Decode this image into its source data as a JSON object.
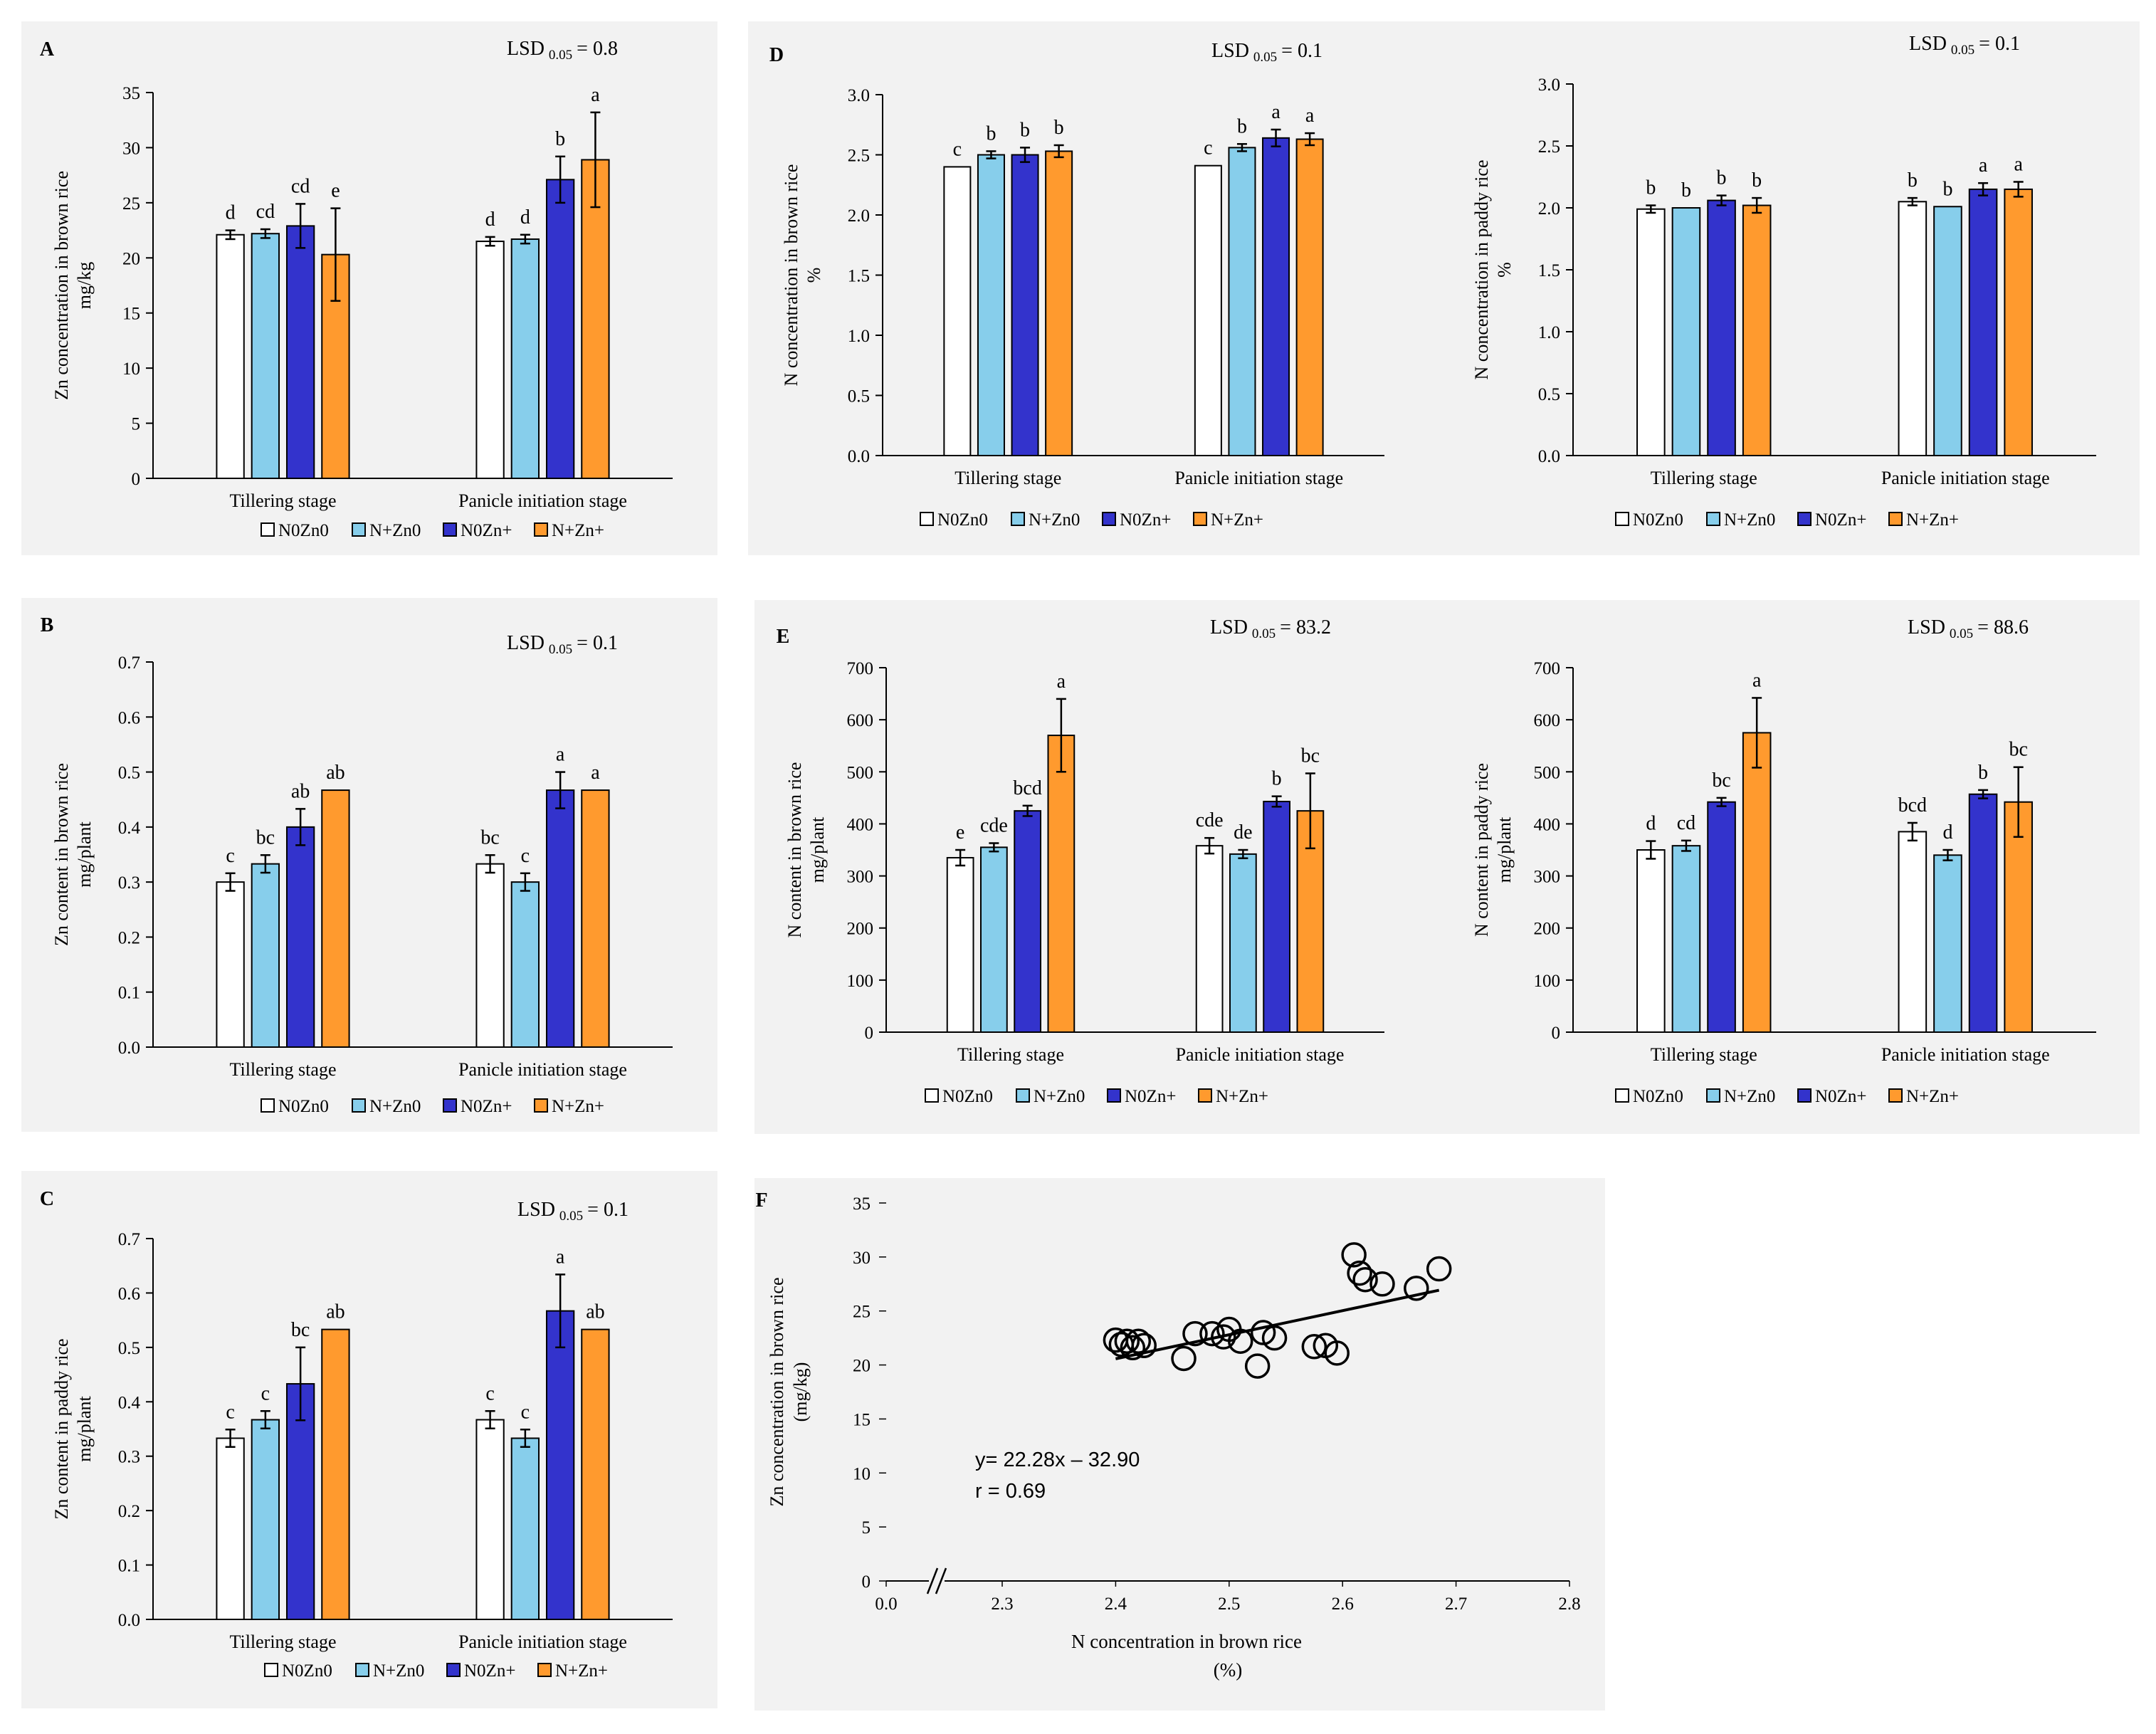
{
  "colors": {
    "N0Zn0": "#ffffff",
    "N+Zn0": "#87ceeb",
    "N0Zn+": "#3333cc",
    "N+Zn+": "#ff9a2e",
    "panel_bg": "#f2f2f2",
    "stroke": "#000000"
  },
  "legend_labels": [
    "N0Zn0",
    "N+Zn0",
    "N0Zn+",
    "N+Zn+"
  ],
  "chart_data": [
    {
      "panel": "A",
      "type": "bar",
      "title": "LSD 0.05 = 0.8",
      "lsd_label": "LSD",
      "lsd_sub": "0.05",
      "lsd_value": "= 0.8",
      "ylabel_line1": "Zn  concentration in brown rice",
      "ylabel_line2": "mg/kg",
      "ylim": [
        0,
        35
      ],
      "yticks": [
        0,
        5,
        10,
        15,
        20,
        25,
        30,
        35
      ],
      "ytick_labels": [
        "0",
        "5",
        "10",
        "15",
        "20",
        "25",
        "30",
        "35"
      ],
      "categories": [
        "Tillering stage",
        "Panicle initiation stage"
      ],
      "series": [
        {
          "name": "N0Zn0",
          "values": [
            22.1,
            21.5
          ],
          "errors": [
            0.4,
            0.4
          ],
          "letters": [
            "d",
            "d"
          ]
        },
        {
          "name": "N+Zn0",
          "values": [
            22.2,
            21.7
          ],
          "errors": [
            0.4,
            0.4
          ],
          "letters": [
            "cd",
            "d"
          ]
        },
        {
          "name": "N0Zn+",
          "values": [
            22.9,
            27.1
          ],
          "errors": [
            2.0,
            2.1
          ],
          "letters": [
            "cd",
            "b"
          ]
        },
        {
          "name": "N+Zn+",
          "values": [
            20.3,
            28.9
          ],
          "errors": [
            4.2,
            4.3
          ],
          "letters": [
            "e",
            "a"
          ]
        }
      ]
    },
    {
      "panel": "B",
      "type": "bar",
      "title": "LSD 0.05 = 0.1",
      "lsd_label": "LSD",
      "lsd_sub": "0.05",
      "lsd_value": "= 0.1",
      "ylabel_line1": "Zn  content in brown rice",
      "ylabel_line2": "mg/plant",
      "ylim": [
        0,
        0.7
      ],
      "yticks": [
        0,
        0.1,
        0.2,
        0.3,
        0.4,
        0.5,
        0.6,
        0.7
      ],
      "ytick_labels": [
        "0.0",
        "0.1",
        "0.2",
        "0.3",
        "0.4",
        "0.5",
        "0.6",
        "0.7"
      ],
      "categories": [
        "Tillering stage",
        "Panicle initiation stage"
      ],
      "series": [
        {
          "name": "N0Zn0",
          "values": [
            0.3,
            0.333
          ],
          "errors": [
            0.016,
            0.016
          ],
          "letters": [
            "c",
            "bc"
          ]
        },
        {
          "name": "N+Zn0",
          "values": [
            0.333,
            0.3
          ],
          "errors": [
            0.016,
            0.016
          ],
          "letters": [
            "bc",
            "c"
          ]
        },
        {
          "name": "N0Zn+",
          "values": [
            0.4,
            0.467
          ],
          "errors": [
            0.033,
            0.033
          ],
          "letters": [
            "ab",
            "a"
          ]
        },
        {
          "name": "N+Zn+",
          "values": [
            0.467,
            0.467
          ],
          "errors": [
            0,
            0
          ],
          "letters": [
            "ab",
            "a"
          ]
        }
      ]
    },
    {
      "panel": "C",
      "type": "bar",
      "title": "LSD 0.05 = 0.1",
      "lsd_label": "LSD",
      "lsd_sub": "0.05",
      "lsd_value": "= 0.1",
      "ylabel_line1": "Zn  content in paddy rice",
      "ylabel_line2": "mg/plant",
      "ylim": [
        0,
        0.7
      ],
      "yticks": [
        0,
        0.1,
        0.2,
        0.3,
        0.4,
        0.5,
        0.6,
        0.7
      ],
      "ytick_labels": [
        "0.0",
        "0.1",
        "0.2",
        "0.3",
        "0.4",
        "0.5",
        "0.6",
        "0.7"
      ],
      "categories": [
        "Tillering stage",
        "Panicle initiation stage"
      ],
      "series": [
        {
          "name": "N0Zn0",
          "values": [
            0.333,
            0.367
          ],
          "errors": [
            0.016,
            0.016
          ],
          "letters": [
            "c",
            "c"
          ]
        },
        {
          "name": "N+Zn0",
          "values": [
            0.367,
            0.333
          ],
          "errors": [
            0.016,
            0.016
          ],
          "letters": [
            "c",
            "c"
          ]
        },
        {
          "name": "N0Zn+",
          "values": [
            0.433,
            0.567
          ],
          "errors": [
            0.067,
            0.067
          ],
          "letters": [
            "bc",
            "a"
          ]
        },
        {
          "name": "N+Zn+",
          "values": [
            0.533,
            0.533
          ],
          "errors": [
            0,
            0
          ],
          "letters": [
            "ab",
            "ab"
          ]
        }
      ]
    },
    {
      "panel": "D",
      "type": "bar",
      "title": "LSD 0.05 = 0.1",
      "lsd_label": "LSD",
      "lsd_sub": "0.05",
      "lsd_value": "= 0.1",
      "ylabel_line1": "N  concentration in brown rice",
      "ylabel_line2": "%",
      "ylim": [
        0,
        3.0
      ],
      "yticks": [
        0,
        0.5,
        1.0,
        1.5,
        2.0,
        2.5,
        3.0
      ],
      "ytick_labels": [
        "0.0",
        "0.5",
        "1.0",
        "1.5",
        "2.0",
        "2.5",
        "3.0"
      ],
      "categories": [
        "Tillering stage",
        "Panicle initiation stage"
      ],
      "series": [
        {
          "name": "N0Zn0",
          "values": [
            2.4,
            2.41
          ],
          "errors": [
            0,
            0
          ],
          "letters": [
            "c",
            "c"
          ]
        },
        {
          "name": "N+Zn0",
          "values": [
            2.5,
            2.56
          ],
          "errors": [
            0.03,
            0.03
          ],
          "letters": [
            "b",
            "b"
          ]
        },
        {
          "name": "N0Zn+",
          "values": [
            2.5,
            2.64
          ],
          "errors": [
            0.06,
            0.07
          ],
          "letters": [
            "b",
            "a"
          ]
        },
        {
          "name": "N+Zn+",
          "values": [
            2.53,
            2.63
          ],
          "errors": [
            0.05,
            0.05
          ],
          "letters": [
            "b",
            "a"
          ]
        }
      ]
    },
    {
      "panel": "D2",
      "type": "bar",
      "title": "LSD 0.05 = 0.1",
      "lsd_label": "LSD",
      "lsd_sub": "0.05",
      "lsd_value": "= 0.1",
      "ylabel_line1": "N  concentration in paddy rice",
      "ylabel_line2": "%",
      "ylim": [
        0,
        3.0
      ],
      "yticks": [
        0,
        0.5,
        1.0,
        1.5,
        2.0,
        2.5,
        3.0
      ],
      "ytick_labels": [
        "0.0",
        "0.5",
        "1.0",
        "1.5",
        "2.0",
        "2.5",
        "3.0"
      ],
      "categories": [
        "Tillering stage",
        "Panicle initiation stage"
      ],
      "series": [
        {
          "name": "N0Zn0",
          "values": [
            1.99,
            2.05
          ],
          "errors": [
            0.03,
            0.03
          ],
          "letters": [
            "b",
            "b"
          ]
        },
        {
          "name": "N+Zn0",
          "values": [
            2.0,
            2.01
          ],
          "errors": [
            0,
            0
          ],
          "letters": [
            "b",
            "b"
          ]
        },
        {
          "name": "N0Zn+",
          "values": [
            2.06,
            2.15
          ],
          "errors": [
            0.04,
            0.05
          ],
          "letters": [
            "b",
            "a"
          ]
        },
        {
          "name": "N+Zn+",
          "values": [
            2.02,
            2.15
          ],
          "errors": [
            0.06,
            0.06
          ],
          "letters": [
            "b",
            "a"
          ]
        }
      ]
    },
    {
      "panel": "E",
      "type": "bar",
      "title": "LSD 0.05 = 83.2",
      "lsd_label": "LSD",
      "lsd_sub": "0.05",
      "lsd_value": "= 83.2",
      "ylabel_line1": "N  content in brown rice",
      "ylabel_line2": "mg/plant",
      "ylim": [
        0,
        700
      ],
      "yticks": [
        0,
        100,
        200,
        300,
        400,
        500,
        600,
        700
      ],
      "ytick_labels": [
        "0",
        "100",
        "200",
        "300",
        "400",
        "500",
        "600",
        "700"
      ],
      "categories": [
        "Tillering stage",
        "Panicle initiation stage"
      ],
      "series": [
        {
          "name": "N0Zn0",
          "values": [
            335,
            358
          ],
          "errors": [
            15,
            15
          ],
          "letters": [
            "e",
            "cde"
          ]
        },
        {
          "name": "N+Zn0",
          "values": [
            355,
            342
          ],
          "errors": [
            8,
            8
          ],
          "letters": [
            "cde",
            "de"
          ]
        },
        {
          "name": "N0Zn+",
          "values": [
            425,
            443
          ],
          "errors": [
            10,
            10
          ],
          "letters": [
            "bcd",
            "b"
          ]
        },
        {
          "name": "N+Zn+",
          "values": [
            570,
            425
          ],
          "errors": [
            70,
            72
          ],
          "letters": [
            "a",
            "bc"
          ]
        }
      ]
    },
    {
      "panel": "E2",
      "type": "bar",
      "title": "LSD 0.05 = 88.6",
      "lsd_label": "LSD",
      "lsd_sub": "0.05",
      "lsd_value": "= 88.6",
      "ylabel_line1": "N  content in paddy rice",
      "ylabel_line2": "mg/plant",
      "ylim": [
        0,
        700
      ],
      "yticks": [
        0,
        100,
        200,
        300,
        400,
        500,
        600,
        700
      ],
      "ytick_labels": [
        "0",
        "100",
        "200",
        "300",
        "400",
        "500",
        "600",
        "700"
      ],
      "categories": [
        "Tillering stage",
        "Panicle initiation stage"
      ],
      "series": [
        {
          "name": "N0Zn0",
          "values": [
            350,
            385
          ],
          "errors": [
            17,
            17
          ],
          "letters": [
            "d",
            "bcd"
          ]
        },
        {
          "name": "N+Zn0",
          "values": [
            358,
            340
          ],
          "errors": [
            10,
            10
          ],
          "letters": [
            "cd",
            "d"
          ]
        },
        {
          "name": "N0Zn+",
          "values": [
            442,
            457
          ],
          "errors": [
            8,
            8
          ],
          "letters": [
            "bc",
            "b"
          ]
        },
        {
          "name": "N+Zn+",
          "values": [
            575,
            442
          ],
          "errors": [
            67,
            67
          ],
          "letters": [
            "a",
            "bc"
          ]
        }
      ]
    },
    {
      "panel": "F",
      "type": "scatter",
      "xlabel_line1": "N concentration in brown rice",
      "xlabel_line2": "(%)",
      "ylabel_line1": "Zn concentration in brown rice",
      "ylabel_line2": "(mg/kg)",
      "ylim": [
        0,
        35
      ],
      "yticks": [
        0,
        5,
        10,
        15,
        20,
        25,
        30,
        35
      ],
      "ytick_labels": [
        "0",
        "5",
        "10",
        "15",
        "20",
        "25",
        "30",
        "35"
      ],
      "xticks": [
        0.0,
        2.3,
        2.4,
        2.5,
        2.6,
        2.7,
        2.8
      ],
      "xtick_labels": [
        "0.0",
        "2.3",
        "2.4",
        "2.5",
        "2.6",
        "2.7",
        "2.8"
      ],
      "xlim_broken": [
        2.25,
        2.8
      ],
      "equation": "y= 22.28x – 32.90",
      "r_label": "r = 0.69",
      "fit": {
        "slope": 22.28,
        "intercept": -32.9,
        "x_start": 2.4,
        "x_end": 2.685
      },
      "points": [
        {
          "x": 2.4,
          "y": 22.3
        },
        {
          "x": 2.405,
          "y": 21.9
        },
        {
          "x": 2.41,
          "y": 22.2
        },
        {
          "x": 2.415,
          "y": 21.6
        },
        {
          "x": 2.42,
          "y": 22.2
        },
        {
          "x": 2.425,
          "y": 21.8
        },
        {
          "x": 2.46,
          "y": 20.6
        },
        {
          "x": 2.47,
          "y": 22.9
        },
        {
          "x": 2.485,
          "y": 22.9
        },
        {
          "x": 2.495,
          "y": 22.6
        },
        {
          "x": 2.5,
          "y": 23.3
        },
        {
          "x": 2.51,
          "y": 22.2
        },
        {
          "x": 2.525,
          "y": 19.9
        },
        {
          "x": 2.53,
          "y": 23.0
        },
        {
          "x": 2.54,
          "y": 22.5
        },
        {
          "x": 2.575,
          "y": 21.7
        },
        {
          "x": 2.585,
          "y": 21.8
        },
        {
          "x": 2.595,
          "y": 21.1
        },
        {
          "x": 2.61,
          "y": 30.2
        },
        {
          "x": 2.615,
          "y": 28.5
        },
        {
          "x": 2.62,
          "y": 27.9
        },
        {
          "x": 2.635,
          "y": 27.5
        },
        {
          "x": 2.665,
          "y": 27.1
        },
        {
          "x": 2.685,
          "y": 28.9
        }
      ]
    }
  ]
}
